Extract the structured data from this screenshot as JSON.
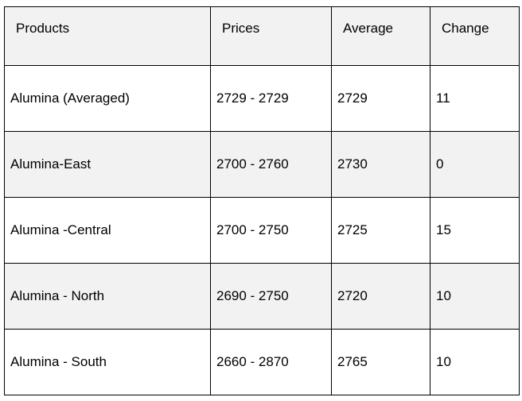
{
  "table": {
    "header": [
      "Products",
      "Prices",
      "Average",
      "Change"
    ],
    "rows": [
      [
        "Alumina (Averaged)",
        "2729 - 2729",
        "2729",
        "11"
      ],
      [
        "Alumina-East",
        "2700 - 2760",
        "2730",
        "0"
      ],
      [
        "Alumina -Central",
        "2700 - 2750",
        "2725",
        "15"
      ],
      [
        "Alumina - North",
        "2690 - 2750",
        "2720",
        "10"
      ],
      [
        "Alumina - South",
        "2660 - 2870",
        "2765",
        "10"
      ]
    ]
  }
}
